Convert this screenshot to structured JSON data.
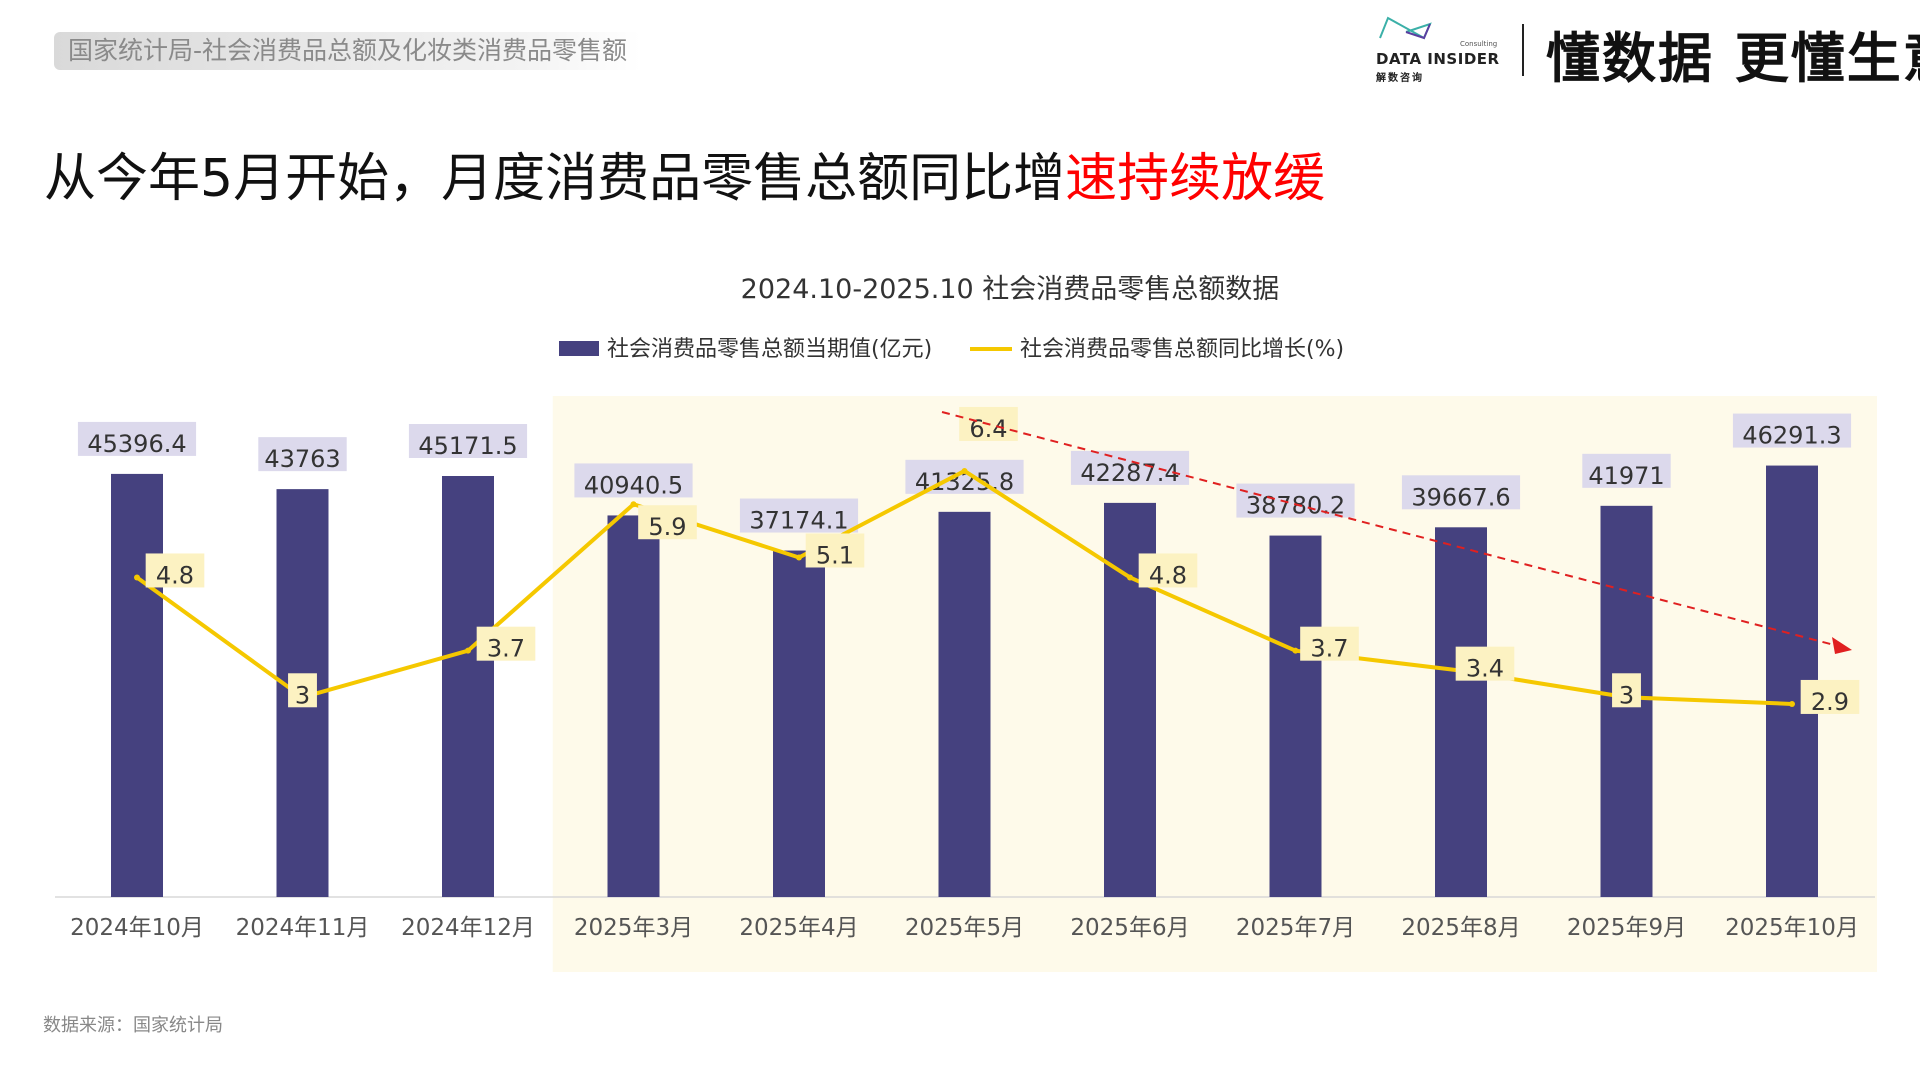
{
  "header": {
    "tag": "国家统计局-社会消费品总额及化妆类消费品零售额",
    "logo": {
      "name": "DATA INSIDER",
      "sub": "Consulting",
      "cn": "解数咨询"
    },
    "slogan": "懂数据 更懂生意"
  },
  "headline": {
    "part1": "从今年5月开始，月度消费品零售总额同比增",
    "part2": "速持续放缓"
  },
  "source": "数据来源：国家统计局",
  "chart_data": {
    "type": "bar+line",
    "title": "2024.10-2025.10 社会消费品零售总额数据",
    "categories": [
      "2024年10月",
      "2024年11月",
      "2024年12月",
      "2025年3月",
      "2025年4月",
      "2025年5月",
      "2025年6月",
      "2025年7月",
      "2025年8月",
      "2025年9月",
      "2025年10月"
    ],
    "series": [
      {
        "name": "社会消费品零售总额当期值(亿元)",
        "type": "bar",
        "axis": "left",
        "color": "#45417f",
        "values": [
          45396.4,
          43763,
          45171.5,
          40940.5,
          37174.1,
          41325.8,
          42287.4,
          38780.2,
          39667.6,
          41971,
          46291.3
        ],
        "labels": [
          "45396.4",
          "43763",
          "45171.5",
          "40940.5",
          "37174.1",
          "41325.8",
          "42287.4",
          "38780.2",
          "39667.6",
          "41971",
          "46291.3"
        ]
      },
      {
        "name": "社会消费品零售总额同比增长(%)",
        "type": "line",
        "axis": "right",
        "color": "#f5c800",
        "values": [
          4.8,
          3,
          3.7,
          5.9,
          5.1,
          6.4,
          4.8,
          3.7,
          3.4,
          3,
          2.9
        ],
        "labels": [
          "4.8",
          "3",
          "3.7",
          "5.9",
          "5.1",
          "6.4",
          "4.8",
          "3.7",
          "3.4",
          "3",
          "2.9"
        ]
      }
    ],
    "ylim": [
      0,
      50000
    ],
    "y2lim": [
      0,
      7
    ],
    "grid": false,
    "legend": "top-center",
    "highlight_range": [
      "2025年3月",
      "2025年10月"
    ],
    "highlight_color": "#fefaea",
    "trend_arrow": {
      "from": "2025年5月",
      "to": "2025年10月",
      "color": "#e02020",
      "style": "dashed"
    }
  }
}
